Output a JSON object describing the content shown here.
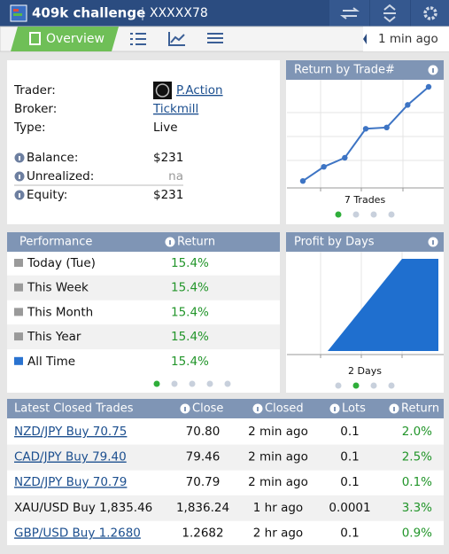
{
  "header": {
    "title": "409k challenge",
    "account": "XXXXX78"
  },
  "nav": {
    "tab": "Overview",
    "updated": "1 min ago"
  },
  "account": {
    "rows": [
      [
        "Trader:",
        "P.Action"
      ],
      [
        "Broker:",
        "Tickmill"
      ],
      [
        "Type:",
        "Live"
      ],
      [
        "Balance:",
        "$231"
      ],
      [
        "Unrealized:",
        "na"
      ],
      [
        "Equity:",
        "$231"
      ]
    ]
  },
  "return_by_trade": {
    "type": "line",
    "title": "Return by Trade#",
    "values": [
      0.8,
      3.0,
      4.4,
      8.9,
      9.1,
      12.6,
      15.4
    ],
    "label": "7 Trades",
    "color": "#3d74c4"
  },
  "performance": {
    "columns": [
      "Performance",
      "Return"
    ],
    "rows": [
      [
        "Today (Tue)",
        "15.4%"
      ],
      [
        "This Week",
        "15.4%"
      ],
      [
        "This Month",
        "15.4%"
      ],
      [
        "This Year",
        "15.4%"
      ],
      [
        "All Time",
        "15.4%"
      ]
    ]
  },
  "profit_by_days": {
    "type": "area",
    "title": "Profit by Days",
    "values": [
      0,
      15.4
    ],
    "label": "2 Days",
    "color": "#1f6fcf"
  },
  "trades": {
    "columns": [
      "Latest Closed Trades",
      "Close",
      "Closed",
      "Lots",
      "Return"
    ],
    "rows": [
      [
        "NZD/JPY Buy 70.75",
        "70.80",
        "2 min ago",
        "0.1",
        "2.0%"
      ],
      [
        "CAD/JPY Buy 79.40",
        "79.46",
        "2 min ago",
        "0.1",
        "2.5%"
      ],
      [
        "NZD/JPY Buy 70.79",
        "70.79",
        "2 min ago",
        "0.1",
        "0.1%"
      ],
      [
        "XAU/USD Buy 1,835.46",
        "1,836.24",
        "1 hr ago",
        "0.0001",
        "3.3%"
      ],
      [
        "GBP/USD Buy 1.2680",
        "1.2682",
        "2 hr ago",
        "0.1",
        "0.9%"
      ]
    ]
  }
}
